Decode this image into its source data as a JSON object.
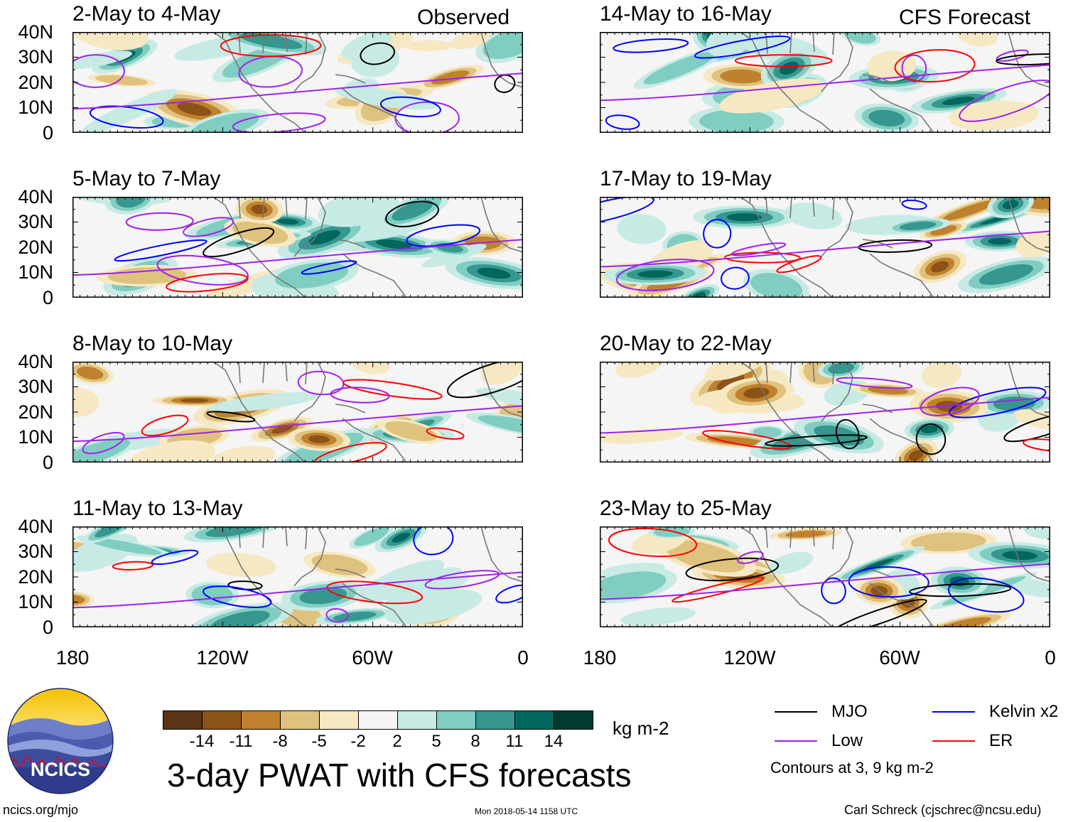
{
  "header": {
    "observed_label": "Observed",
    "forecast_label": "CFS Forecast"
  },
  "panels": [
    {
      "date_range": "2-May to 4-May",
      "column": "observed"
    },
    {
      "date_range": "5-May to 7-May",
      "column": "observed"
    },
    {
      "date_range": "8-May to 10-May",
      "column": "observed"
    },
    {
      "date_range": "11-May to 13-May",
      "column": "observed"
    },
    {
      "date_range": "14-May to 16-May",
      "column": "forecast"
    },
    {
      "date_range": "17-May to 19-May",
      "column": "forecast"
    },
    {
      "date_range": "20-May to 22-May",
      "column": "forecast"
    },
    {
      "date_range": "23-May to 25-May",
      "column": "forecast"
    }
  ],
  "axes": {
    "lat_ticks": [
      "40N",
      "30N",
      "20N",
      "10N",
      "0"
    ],
    "lon_ticks": [
      "180",
      "120W",
      "60W",
      "0"
    ]
  },
  "colorbar": {
    "ticks": [
      "-14",
      "-11",
      "-8",
      "-5",
      "-2",
      "2",
      "5",
      "8",
      "11",
      "14"
    ],
    "units": "kg m-2",
    "colors": [
      "#5a3414",
      "#8c5318",
      "#bf812d",
      "#dfc27d",
      "#f6e8c3",
      "#f5f5f5",
      "#c7eae5",
      "#80cdc1",
      "#35978f",
      "#01665e",
      "#003c30"
    ]
  },
  "title": "3-day PWAT with CFS forecasts",
  "legend": {
    "items": [
      {
        "label": "MJO",
        "color": "#000000"
      },
      {
        "label": "Kelvin x2",
        "color": "#0000ff"
      },
      {
        "label": "Low",
        "color": "#a020f0"
      },
      {
        "label": "ER",
        "color": "#ff0000"
      }
    ],
    "note": "Contours at 3, 9 kg m-2"
  },
  "logo": {
    "text": "NCICS"
  },
  "footer": {
    "left": "ncics.org/mjo",
    "center": "Mon 2018-05-14 1158 UTC",
    "right": "Carl Schreck (cjschrec@ncsu.edu)"
  }
}
